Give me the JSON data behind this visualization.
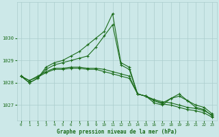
{
  "background_color": "#cce8e8",
  "grid_color": "#aacccc",
  "line_color": "#1a6b1a",
  "hours": [
    0,
    1,
    2,
    3,
    4,
    5,
    6,
    7,
    8,
    9,
    10,
    11,
    12,
    13,
    14,
    15,
    16,
    17,
    18,
    19,
    20,
    21,
    22,
    23
  ],
  "series": [
    [
      1028.3,
      1028.0,
      1028.2,
      1028.7,
      1028.9,
      1029.0,
      1029.2,
      1029.4,
      1029.7,
      1030.0,
      1030.3,
      1031.1,
      1028.9,
      1028.7,
      1027.5,
      1027.4,
      1027.1,
      1027.0,
      1027.3,
      1027.5,
      1027.2,
      1026.9,
      1026.8,
      1026.5
    ],
    [
      1028.3,
      1028.0,
      1028.2,
      1028.6,
      1028.8,
      1028.9,
      1029.0,
      1029.1,
      1029.2,
      1029.6,
      1030.1,
      1030.6,
      1028.8,
      1028.6,
      1027.5,
      1027.4,
      1027.2,
      1027.1,
      1027.3,
      1027.4,
      1027.2,
      1027.0,
      1026.9,
      1026.6
    ],
    [
      1028.3,
      1028.1,
      1028.3,
      1028.5,
      1028.65,
      1028.65,
      1028.7,
      1028.7,
      1028.65,
      1028.65,
      1028.6,
      1028.5,
      1028.4,
      1028.3,
      1027.5,
      1027.4,
      1027.25,
      1027.15,
      1027.1,
      1027.0,
      1026.9,
      1026.85,
      1026.75,
      1026.55
    ],
    [
      1028.3,
      1028.1,
      1028.25,
      1028.45,
      1028.6,
      1028.6,
      1028.65,
      1028.65,
      1028.6,
      1028.6,
      1028.5,
      1028.4,
      1028.3,
      1028.2,
      1027.5,
      1027.4,
      1027.2,
      1027.05,
      1027.0,
      1026.9,
      1026.8,
      1026.75,
      1026.65,
      1026.45
    ]
  ],
  "ylim": [
    1026.3,
    1031.6
  ],
  "yticks": [
    1027,
    1028,
    1029,
    1030
  ],
  "xlim": [
    -0.5,
    23.5
  ],
  "xticks": [
    0,
    1,
    2,
    3,
    4,
    5,
    6,
    7,
    8,
    9,
    10,
    11,
    12,
    13,
    14,
    15,
    16,
    17,
    18,
    19,
    20,
    21,
    22,
    23
  ],
  "xlabel": "Graphe pression niveau de la mer (hPa)",
  "marker": "+",
  "markersize": 3.5,
  "linewidth": 0.8
}
